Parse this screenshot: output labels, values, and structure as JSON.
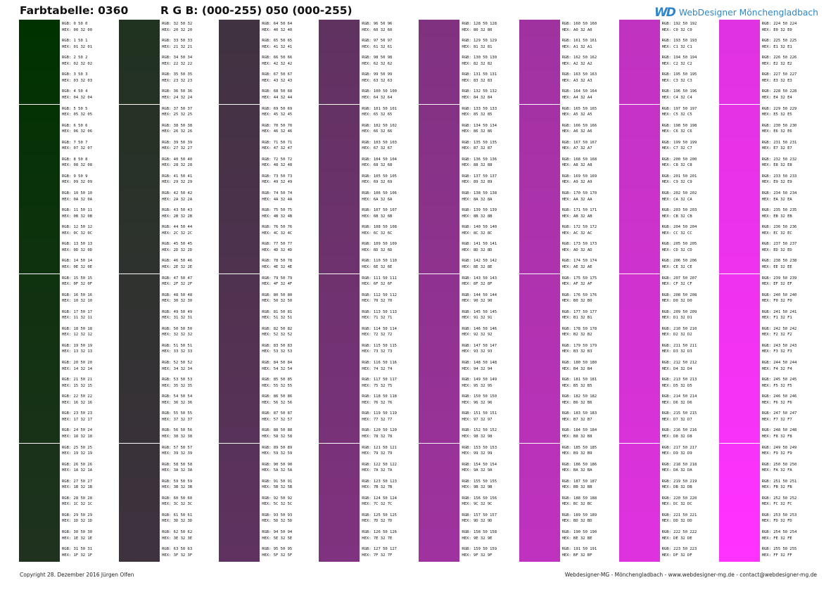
{
  "header": {
    "title_left": "Farbtabelle: 0360",
    "title_right": "R G B: (000-255) 050 (000-255)",
    "logo_mark": "WD",
    "logo_text": "WebDesigner Mönchengladbach",
    "logo_color": "#2f86c9"
  },
  "table": {
    "green_fixed": 50,
    "rgb_prefix": "RGB:",
    "hex_prefix": "HEX:",
    "columns": [
      {
        "start": 0,
        "end": 31
      },
      {
        "start": 32,
        "end": 63
      },
      {
        "start": 64,
        "end": 95
      },
      {
        "start": 96,
        "end": 127
      },
      {
        "start": 128,
        "end": 159
      },
      {
        "start": 160,
        "end": 191
      },
      {
        "start": 192,
        "end": 223
      },
      {
        "start": 224,
        "end": 255
      }
    ]
  },
  "footer": {
    "left": "Copyright 28. Dezember 2016 Jürgen Olfen",
    "right": "Webdesigner-MG - Mönchengladbach - www.webdesigner-mg.de - contact@webdesigner-mg.de"
  }
}
